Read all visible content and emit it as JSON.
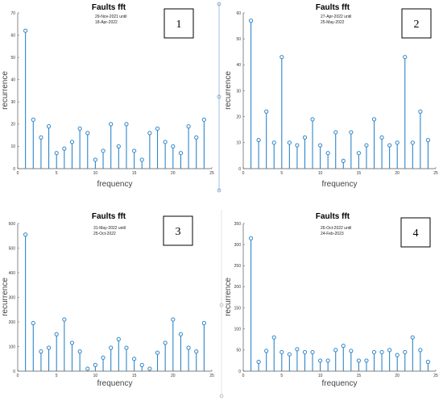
{
  "chart_data": [
    {
      "type": "stem",
      "title": "Faults fft",
      "date_range": [
        "29-Nov-2021 until",
        "18-Apr-2022"
      ],
      "panel_number": "1",
      "xlabel": "frequency",
      "ylabel": "recurrence",
      "xlim": [
        0,
        25
      ],
      "ylim": [
        0,
        70
      ],
      "xticks": [
        "0",
        "5",
        "10",
        "15",
        "20",
        "25"
      ],
      "yticks": [
        "0",
        "10",
        "20",
        "30",
        "40",
        "50",
        "60",
        "70"
      ],
      "x": [
        1,
        2,
        3,
        4,
        5,
        6,
        7,
        8,
        9,
        10,
        11,
        12,
        13,
        14,
        15,
        16,
        17,
        18,
        19,
        20,
        21,
        22,
        23,
        24
      ],
      "values": [
        62,
        22,
        14,
        19,
        7,
        9,
        12,
        18,
        16,
        4,
        8,
        20,
        10,
        20,
        8,
        4,
        16,
        18,
        12,
        10,
        7,
        19,
        14,
        22
      ]
    },
    {
      "type": "stem",
      "title": "Faults fft",
      "date_range": [
        "27-Apr-2022 until",
        "25-May-2022"
      ],
      "panel_number": "2",
      "xlabel": "frequency",
      "ylabel": "recurrence",
      "xlim": [
        0,
        25
      ],
      "ylim": [
        0,
        60
      ],
      "xticks": [
        "0",
        "5",
        "10",
        "15",
        "20",
        "25"
      ],
      "yticks": [
        "0",
        "10",
        "20",
        "30",
        "40",
        "50",
        "60"
      ],
      "x": [
        1,
        2,
        3,
        4,
        5,
        6,
        7,
        8,
        9,
        10,
        11,
        12,
        13,
        14,
        15,
        16,
        17,
        18,
        19,
        20,
        21,
        22,
        23,
        24
      ],
      "values": [
        57,
        11,
        22,
        10,
        43,
        10,
        9,
        12,
        19,
        9,
        6,
        14,
        3,
        14,
        6,
        9,
        19,
        12,
        9,
        10,
        43,
        10,
        22,
        11
      ]
    },
    {
      "type": "stem",
      "title": "Faults fft",
      "date_range": [
        "31-May-2022 until",
        "25-Oct-2022"
      ],
      "panel_number": "3",
      "xlabel": "frequency",
      "ylabel": "recurrence",
      "xlim": [
        0,
        25
      ],
      "ylim": [
        0,
        600
      ],
      "xticks": [
        "0",
        "5",
        "10",
        "15",
        "20",
        "25"
      ],
      "yticks": [
        "0",
        "100",
        "200",
        "300",
        "400",
        "500",
        "600"
      ],
      "x": [
        1,
        2,
        3,
        4,
        5,
        6,
        7,
        8,
        9,
        10,
        11,
        12,
        13,
        14,
        15,
        16,
        17,
        18,
        19,
        20,
        21,
        22,
        23,
        24
      ],
      "values": [
        555,
        195,
        80,
        95,
        150,
        210,
        115,
        80,
        10,
        25,
        55,
        95,
        130,
        95,
        50,
        25,
        10,
        75,
        115,
        210,
        150,
        95,
        80,
        195
      ]
    },
    {
      "type": "stem",
      "title": "Faults fft",
      "date_range": [
        "26-Oct-2022 until",
        "24-Feb-2023"
      ],
      "panel_number": "4",
      "xlabel": "frequency",
      "ylabel": "recurrence",
      "xlim": [
        0,
        25
      ],
      "ylim": [
        0,
        350
      ],
      "xticks": [
        "0",
        "5",
        "10",
        "15",
        "20",
        "25"
      ],
      "yticks": [
        "0",
        "50",
        "100",
        "150",
        "200",
        "250",
        "300",
        "350"
      ],
      "x": [
        1,
        2,
        3,
        4,
        5,
        6,
        7,
        8,
        9,
        10,
        11,
        12,
        13,
        14,
        15,
        16,
        17,
        18,
        19,
        20,
        21,
        22,
        23,
        24
      ],
      "values": [
        315,
        22,
        48,
        80,
        45,
        40,
        52,
        45,
        45,
        25,
        25,
        50,
        60,
        48,
        25,
        25,
        45,
        45,
        50,
        38,
        45,
        80,
        50,
        22
      ]
    }
  ],
  "colors": {
    "stem": "#2e86c9",
    "axis": "#555555",
    "divider": "#dddddd"
  }
}
